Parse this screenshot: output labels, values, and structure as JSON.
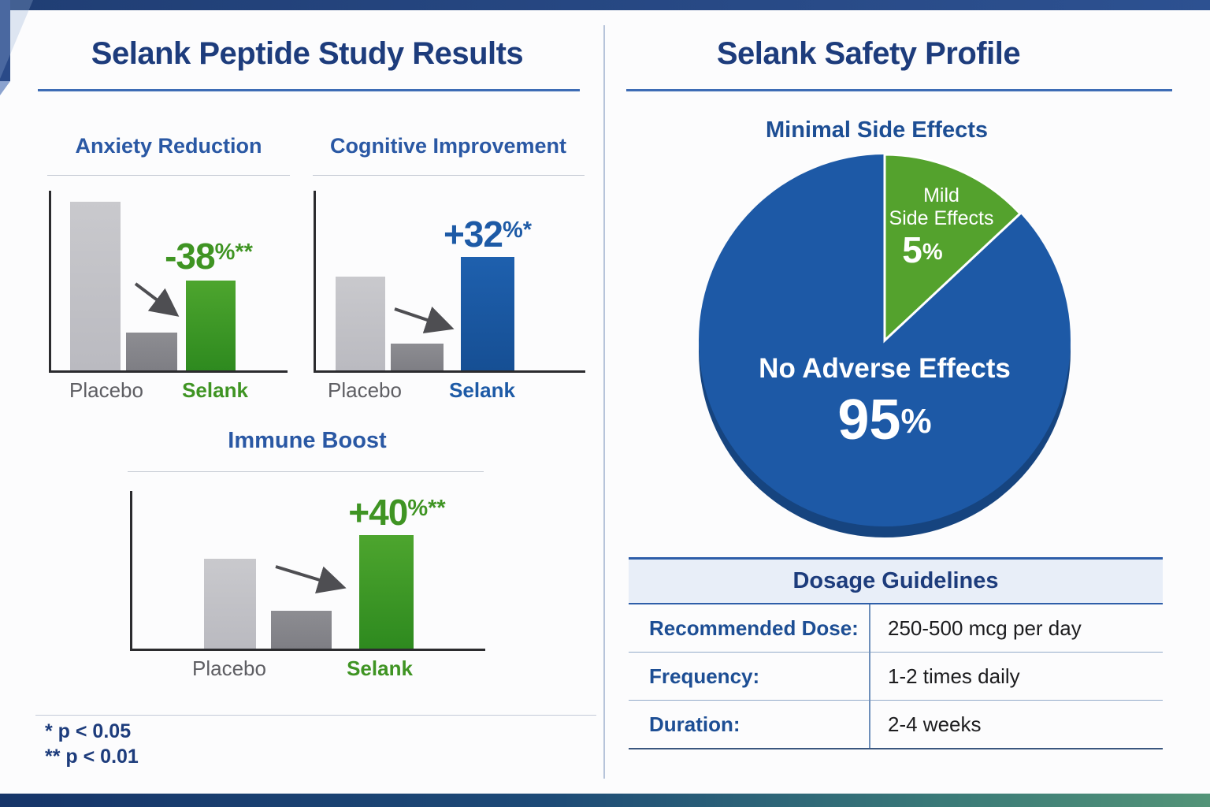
{
  "frame": {
    "accent_navy": "#1d3c7c",
    "heading_blue": "#2a58a4",
    "top_strip_color": "#2a4a88",
    "divider_color": "#b7c4da",
    "bottom_strip_gradient": [
      "#163569",
      "#1d4a77",
      "#539478"
    ]
  },
  "left_panel": {
    "title": "Selank Peptide Study Results"
  },
  "right_panel": {
    "title": "Selank Safety Profile"
  },
  "footnotes": {
    "line1": "* p < 0.05",
    "line2": "** p < 0.01"
  },
  "chart_data": [
    {
      "type": "bar",
      "title": "Anxiety Reduction",
      "categories": [
        "Placebo",
        "Selank"
      ],
      "bars": [
        {
          "series": "Placebo baseline",
          "value": 94,
          "color": "#c9c9cd",
          "color2": "#babac0"
        },
        {
          "series": "Placebo secondary",
          "value": 21,
          "color": "#8d8d92",
          "color2": "#7e7e84"
        },
        {
          "series": "Selank",
          "value": 50,
          "color": "#4da52e",
          "color2": "#2e8a1f"
        }
      ],
      "annotation_value": "-38",
      "annotation_suffix": "%**",
      "annotation_color": "#3f9423",
      "units": "relative bar height, % of plot (no numeric axis shown)"
    },
    {
      "type": "bar",
      "title": "Cognitive Improvement",
      "categories": [
        "Placebo",
        "Selank"
      ],
      "bars": [
        {
          "series": "Placebo baseline",
          "value": 52,
          "color": "#c9c9cd",
          "color2": "#babac0"
        },
        {
          "series": "Placebo secondary",
          "value": 15,
          "color": "#8d8d92",
          "color2": "#7e7e84"
        },
        {
          "series": "Selank",
          "value": 63,
          "color": "#1e60ae",
          "color2": "#164f94"
        }
      ],
      "annotation_value": "+32",
      "annotation_suffix": "%*",
      "annotation_color": "#1d5aa6",
      "units": "relative bar height, % of plot (no numeric axis shown)"
    },
    {
      "type": "bar",
      "title": "Immune Boost",
      "categories": [
        "Placebo",
        "Selank"
      ],
      "bars": [
        {
          "series": "Placebo baseline",
          "value": 57,
          "color": "#c9c9cd",
          "color2": "#babac0"
        },
        {
          "series": "Placebo secondary",
          "value": 24,
          "color": "#8d8d92",
          "color2": "#7e7e84"
        },
        {
          "series": "Selank",
          "value": 72,
          "color": "#4da52e",
          "color2": "#2e8a1f"
        }
      ],
      "annotation_value": "+40",
      "annotation_suffix": "%**",
      "annotation_color": "#3f9423",
      "units": "relative bar height, % of plot (no numeric axis shown)"
    },
    {
      "type": "pie",
      "title": "Minimal Side Effects",
      "pct_sign": "%",
      "wedge_drawn_angle_deg": 47,
      "legend_position": "inside",
      "slices": [
        {
          "label": "No Adverse Effects",
          "value": 95,
          "color": "#1d59a6"
        },
        {
          "label": "Mild Side Effects",
          "label_lines": [
            "Mild",
            "Side Effects"
          ],
          "value": 5,
          "color": "#54a22d"
        }
      ]
    },
    {
      "type": "table",
      "title": "Dosage Guidelines",
      "rows": [
        [
          "Recommended Dose:",
          "250-500 mcg per day"
        ],
        [
          "Frequency:",
          "1-2 times daily"
        ],
        [
          "Duration:",
          "2-4 weeks"
        ]
      ]
    }
  ]
}
